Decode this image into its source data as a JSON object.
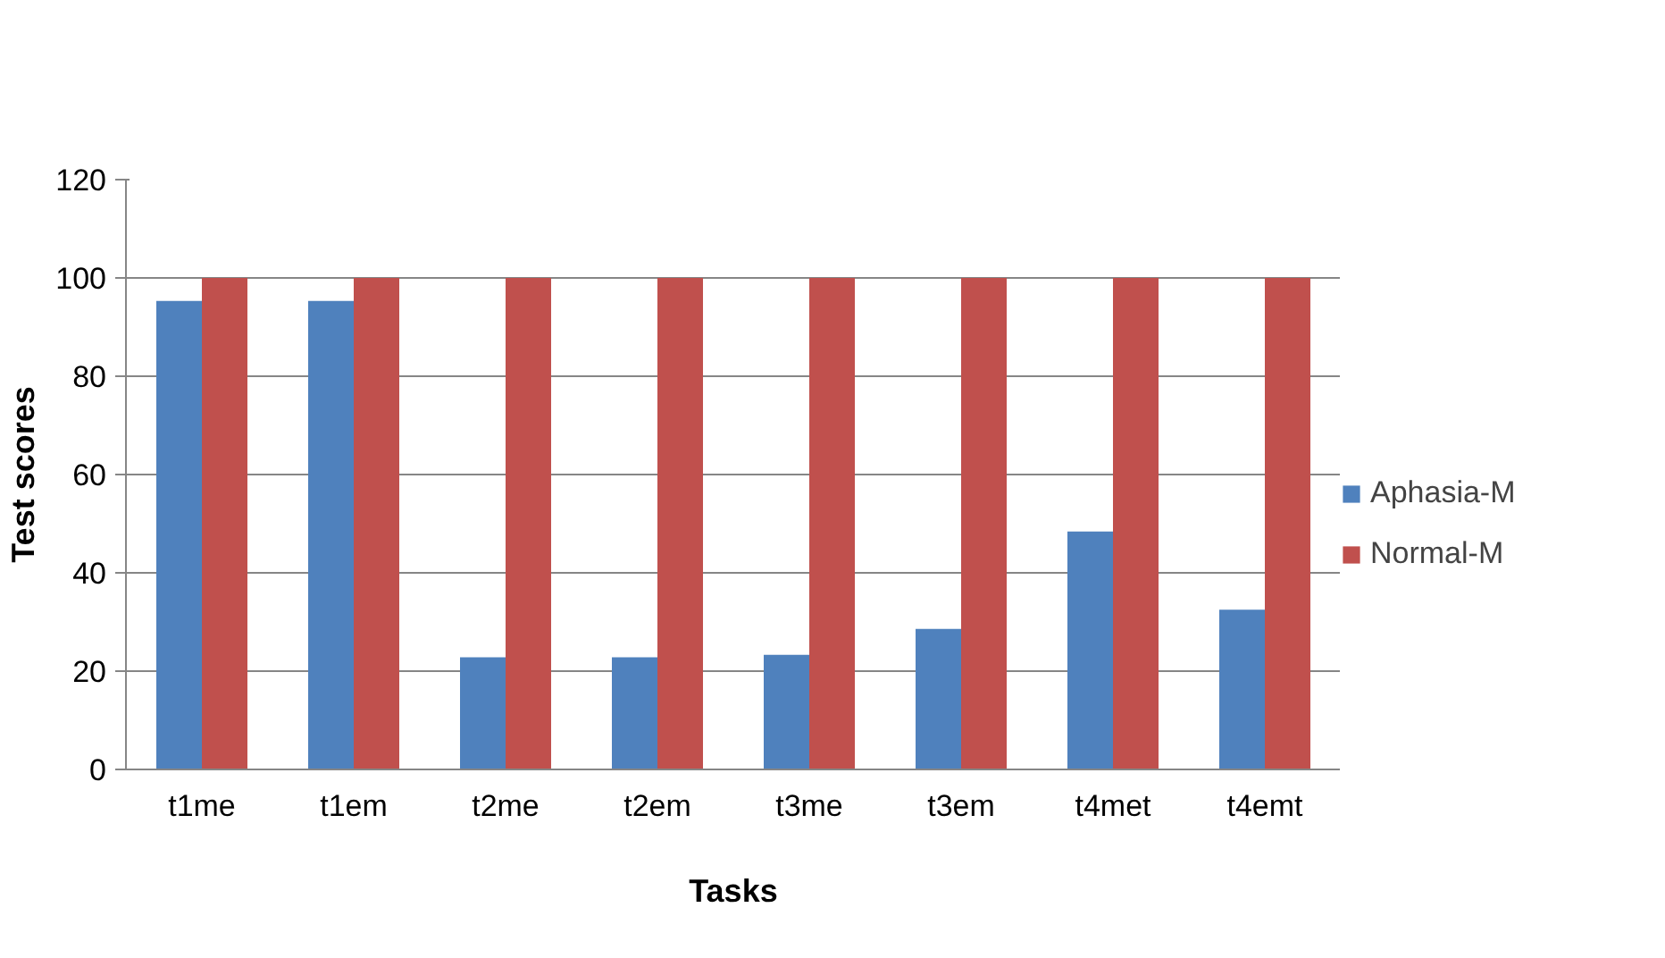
{
  "chart_data": {
    "type": "bar",
    "xlabel": "Tasks",
    "ylabel": "Test scores",
    "categories": [
      "t1me",
      "t1em",
      "t2me",
      "t2em",
      "t3me",
      "t3em",
      "t4met",
      "t4emt"
    ],
    "series": [
      {
        "name": "Aphasia-M",
        "color": "#4f81bd",
        "values": [
          95.3,
          95.3,
          22.8,
          22.8,
          23.3,
          28.6,
          48.4,
          32.5
        ]
      },
      {
        "name": "Normal-M",
        "color": "#c0504d",
        "values": [
          100,
          100,
          100,
          100,
          100,
          100,
          100,
          100
        ]
      }
    ],
    "ylim": [
      0,
      120
    ],
    "yticks": [
      0,
      20,
      40,
      60,
      80,
      100,
      120
    ],
    "grid": "y",
    "legend": "right"
  }
}
